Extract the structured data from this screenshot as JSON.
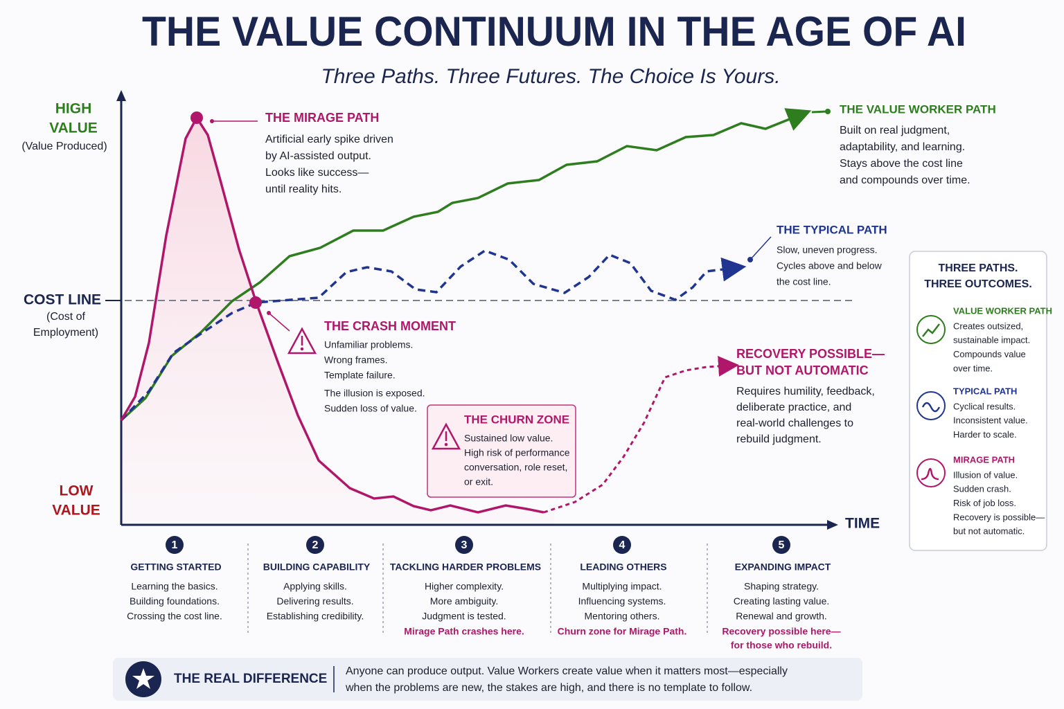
{
  "title": "THE VALUE CONTINUUM IN THE AGE OF AI",
  "subtitle": "Three Paths. Three Futures. The Choice Is Yours.",
  "axes": {
    "high": [
      "HIGH",
      "VALUE"
    ],
    "high_note": "(Value Produced)",
    "low": [
      "LOW",
      "VALUE"
    ],
    "cost": "COST LINE",
    "cost_note": [
      "(Cost of",
      "Employment)"
    ],
    "time": "TIME"
  },
  "callouts": {
    "mirage": {
      "title": "THE MIRAGE PATH",
      "lines": [
        "Artificial early spike driven",
        "by AI-assisted output.",
        "Looks like success—",
        "until reality hits."
      ]
    },
    "value_worker": {
      "title": "THE VALUE WORKER PATH",
      "lines": [
        "Built on real judgment,",
        "adaptability, and learning.",
        "Stays above the cost line",
        "and compounds over time."
      ]
    },
    "typical": {
      "title": "THE TYPICAL PATH",
      "lines": [
        "Slow, uneven progress.",
        "Cycles above and below",
        "the cost line."
      ]
    },
    "crash": {
      "title": "THE CRASH MOMENT",
      "lines": [
        "Unfamiliar problems.",
        "Wrong frames.",
        "Template failure.",
        "The illusion is exposed.",
        "Sudden loss of value."
      ]
    },
    "churn": {
      "title": "THE CHURN ZONE",
      "lines": [
        "Sustained low value.",
        "High risk of performance",
        "conversation, role reset,",
        "or exit."
      ]
    },
    "recovery": {
      "title": [
        "RECOVERY POSSIBLE—",
        "BUT NOT AUTOMATIC"
      ],
      "lines": [
        "Requires humility, feedback,",
        "deliberate practice, and",
        "real-world challenges to",
        "rebuild judgment."
      ]
    }
  },
  "legend": {
    "title": [
      "THREE PATHS.",
      "THREE OUTCOMES."
    ],
    "items": [
      {
        "name": "VALUE WORKER PATH",
        "lines": [
          "Creates outsized,",
          "sustainable impact.",
          "Compounds value",
          "over time."
        ]
      },
      {
        "name": "TYPICAL PATH",
        "lines": [
          "Cyclical results.",
          "Inconsistent value.",
          "Harder to scale."
        ]
      },
      {
        "name": "MIRAGE PATH",
        "lines": [
          "Illusion of value.",
          "Sudden crash.",
          "Risk of job loss.",
          "Recovery is possible—",
          "but not automatic."
        ]
      }
    ]
  },
  "stages": [
    {
      "number": 1,
      "title": "GETTING STARTED",
      "lines": [
        "Learning the basics.",
        "Building foundations.",
        "Crossing the cost line."
      ]
    },
    {
      "number": 2,
      "title": "BUILDING CAPABILITY",
      "lines": [
        "Applying skills.",
        "Delivering results.",
        "Establishing credibility."
      ]
    },
    {
      "number": 3,
      "title": "TACKLING HARDER PROBLEMS",
      "lines": [
        "Higher complexity.",
        "More ambiguity.",
        "Judgment is tested."
      ],
      "note": [
        "Mirage Path crashes here."
      ]
    },
    {
      "number": 4,
      "title": "LEADING OTHERS",
      "lines": [
        "Multiplying impact.",
        "Influencing systems.",
        "Mentoring others."
      ],
      "note": [
        "Churn zone for Mirage Path."
      ]
    },
    {
      "number": 5,
      "title": "EXPANDING IMPACT",
      "lines": [
        "Shaping strategy.",
        "Creating lasting value.",
        "Renewal and growth."
      ],
      "note": [
        "Recovery possible here—",
        "for those who rebuild."
      ]
    }
  ],
  "footer": {
    "label": "THE REAL DIFFERENCE",
    "lines": [
      "Anyone can produce output. Value Workers create value when it matters most—especially",
      "when the problems are new, the stakes are high, and there is no template to follow."
    ]
  }
}
